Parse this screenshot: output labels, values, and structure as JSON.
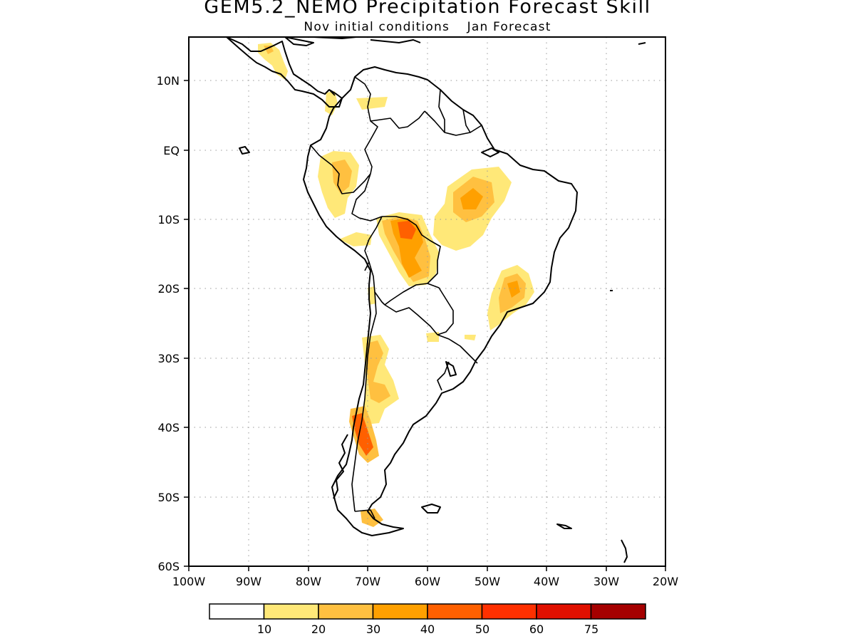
{
  "header": {
    "title": "GEM5.2_NEMO Precipitation Forecast Skill",
    "init_label": "Nov initial conditions",
    "forecast_label": "Jan Forecast"
  },
  "map": {
    "region": "South America",
    "lon_range": [
      -100,
      -20
    ],
    "lat_range": [
      -60,
      15
    ],
    "gridlines": "dotted",
    "lon_ticks": [
      "100W",
      "90W",
      "80W",
      "70W",
      "60W",
      "50W",
      "40W",
      "30W",
      "20W"
    ],
    "lat_ticks": [
      "10N",
      "EQ",
      "10S",
      "20S",
      "30S",
      "40S",
      "50S",
      "60S"
    ]
  },
  "legend": {
    "colors": [
      "#ffffff",
      "#ffe878",
      "#ffc040",
      "#ffa000",
      "#ff6000",
      "#ff3000",
      "#e01000",
      "#a50000"
    ],
    "labels": [
      "10",
      "20",
      "30",
      "40",
      "50",
      "60",
      "75"
    ]
  },
  "colors": {
    "land_outline": "#000000",
    "level_10_20": "#ffe878",
    "level_20_30": "#ffc040",
    "level_30_40": "#ffa000",
    "level_40_50": "#ff6000"
  }
}
